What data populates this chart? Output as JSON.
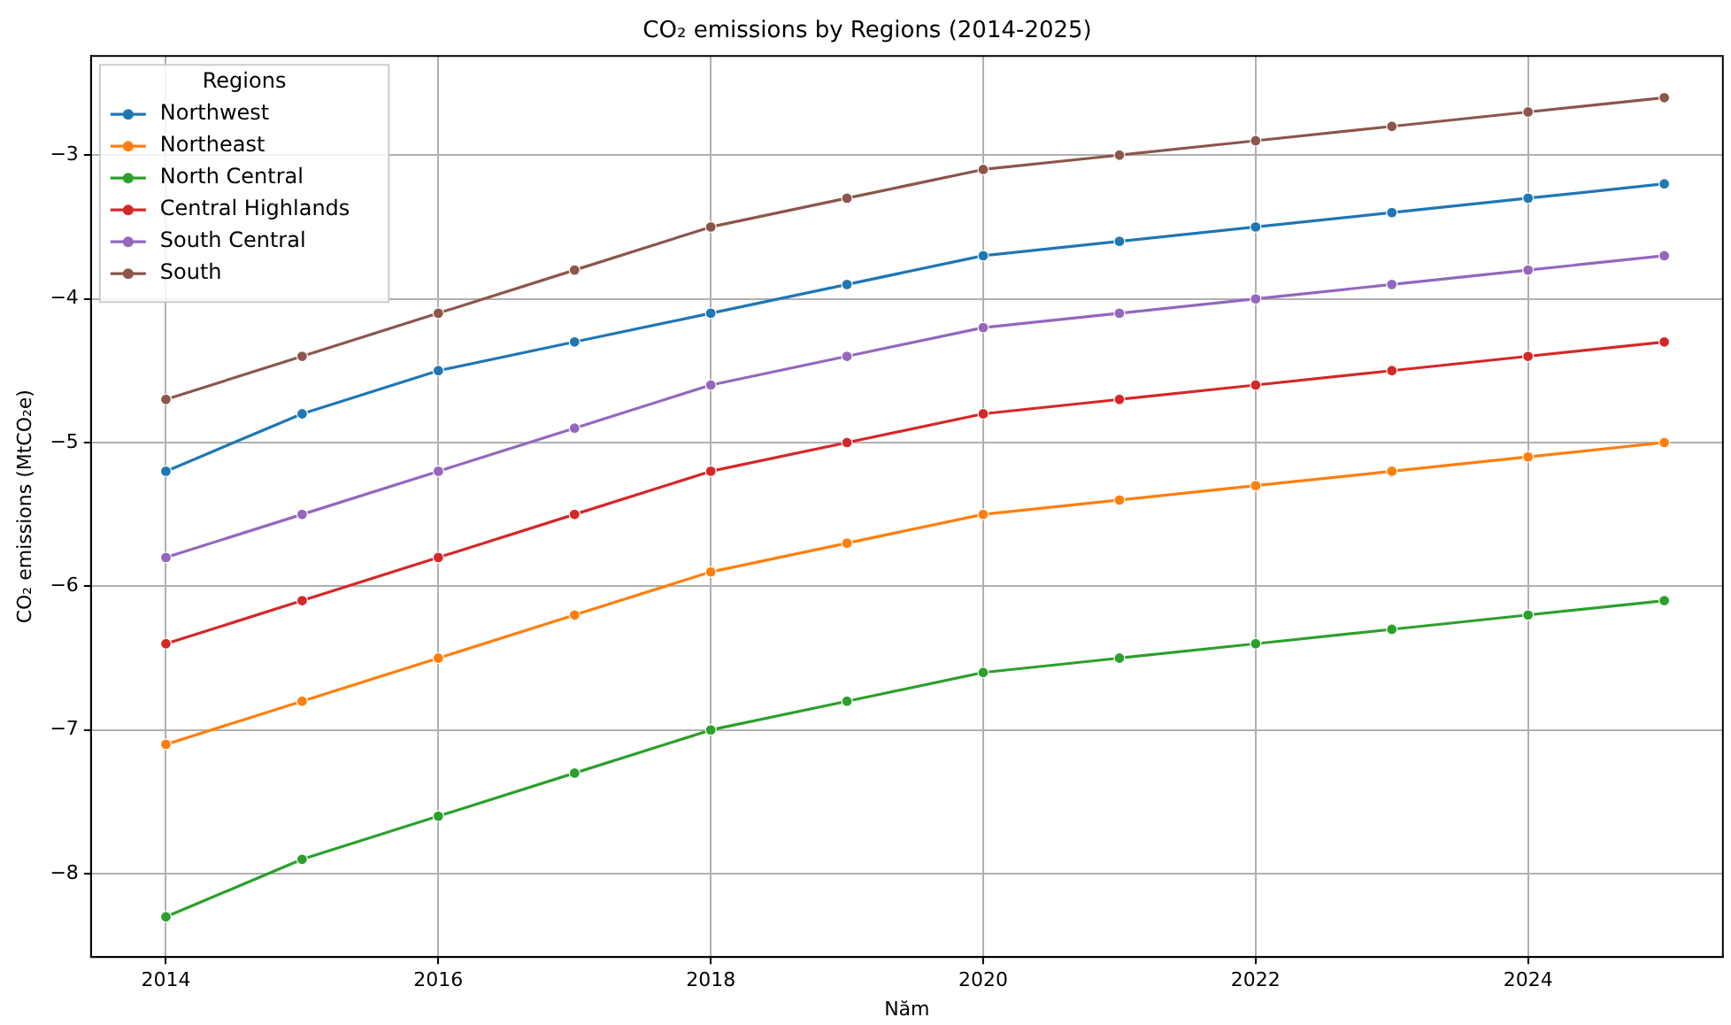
{
  "chart_data": {
    "type": "line",
    "title": "CO₂ emissions by Regions (2014-2025)",
    "xlabel": "Năm",
    "ylabel": "CO₂ emissions (MtCO₂e)",
    "legend_title": "Regions",
    "x": [
      2014,
      2015,
      2016,
      2017,
      2018,
      2019,
      2020,
      2021,
      2022,
      2023,
      2024,
      2025
    ],
    "series": [
      {
        "name": "Northwest",
        "color": "#1f77b4",
        "values": [
          -5.2,
          -4.8,
          -4.5,
          -4.3,
          -4.1,
          -3.9,
          -3.7,
          -3.6,
          -3.5,
          -3.4,
          -3.3,
          -3.2
        ]
      },
      {
        "name": "Northeast",
        "color": "#ff7f0e",
        "values": [
          -7.1,
          -6.8,
          -6.5,
          -6.2,
          -5.9,
          -5.7,
          -5.5,
          -5.4,
          -5.3,
          -5.2,
          -5.1,
          -5.0
        ]
      },
      {
        "name": "North Central",
        "color": "#2ca02c",
        "values": [
          -8.3,
          -7.9,
          -7.6,
          -7.3,
          -7.0,
          -6.8,
          -6.6,
          -6.5,
          -6.4,
          -6.3,
          -6.2,
          -6.1
        ]
      },
      {
        "name": "Central Highlands",
        "color": "#d62728",
        "values": [
          -6.4,
          -6.1,
          -5.8,
          -5.5,
          -5.2,
          -5.0,
          -4.8,
          -4.7,
          -4.6,
          -4.5,
          -4.4,
          -4.3
        ]
      },
      {
        "name": "South Central",
        "color": "#9467bd",
        "values": [
          -5.8,
          -5.5,
          -5.2,
          -4.9,
          -4.6,
          -4.4,
          -4.2,
          -4.1,
          -4.0,
          -3.9,
          -3.8,
          -3.7
        ]
      },
      {
        "name": "South",
        "color": "#8c564b",
        "values": [
          -4.7,
          -4.4,
          -4.1,
          -3.8,
          -3.5,
          -3.3,
          -3.1,
          -3.0,
          -2.9,
          -2.8,
          -2.7,
          -2.6
        ]
      }
    ],
    "xlim": [
      2013.45,
      2025.43
    ],
    "xticks": [
      2014,
      2016,
      2018,
      2020,
      2022,
      2024
    ],
    "ylim": [
      -8.58,
      -2.31
    ],
    "yticks": [
      {
        "value": -8,
        "label": "−8"
      },
      {
        "value": -7,
        "label": "−7"
      },
      {
        "value": -6,
        "label": "−6"
      },
      {
        "value": -5,
        "label": "−5"
      },
      {
        "value": -4,
        "label": "−4"
      },
      {
        "value": -3,
        "label": "−3"
      }
    ],
    "grid": true,
    "legend": "top left",
    "marker": "circle",
    "line_style": "solid"
  }
}
